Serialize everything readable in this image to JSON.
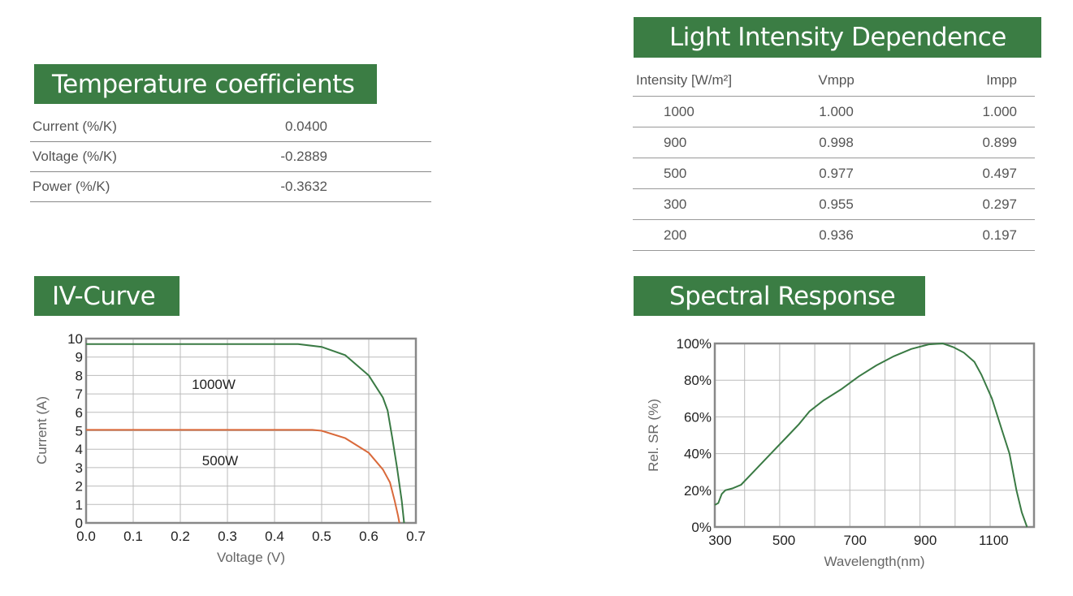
{
  "temperature": {
    "title": "Temperature coefficients",
    "rows": [
      {
        "label": "Current (%/K)",
        "value": "0.0400"
      },
      {
        "label": "Voltage (%/K)",
        "value": "-0.2889"
      },
      {
        "label": "Power (%/K)",
        "value": "-0.3632"
      }
    ]
  },
  "light": {
    "title": "Light Intensity Dependence",
    "headers": [
      "Intensity [W/m²]",
      "Vmpp",
      "Impp"
    ],
    "rows": [
      [
        "1000",
        "1.000",
        "1.000"
      ],
      [
        "900",
        "0.998",
        "0.899"
      ],
      [
        "500",
        "0.977",
        "0.497"
      ],
      [
        "300",
        "0.955",
        "0.297"
      ],
      [
        "200",
        "0.936",
        "0.197"
      ]
    ]
  },
  "iv_title": "IV-Curve",
  "spectral_title": "Spectral Response",
  "colors": {
    "accent": "#3b7d44",
    "green_line": "#3a7a44",
    "orange_line": "#d9693a"
  },
  "chart_data": [
    {
      "type": "line",
      "title": "IV-Curve",
      "xlabel": "Voltage (V)",
      "ylabel": "Current (A)",
      "xlim": [
        0,
        0.7
      ],
      "ylim": [
        0,
        10
      ],
      "xticks": [
        "0.0",
        "0.1",
        "0.2",
        "0.3",
        "0.4",
        "0.5",
        "0.6",
        "0.7"
      ],
      "yticks": [
        "0",
        "1",
        "2",
        "3",
        "4",
        "5",
        "6",
        "7",
        "8",
        "9",
        "10"
      ],
      "grid": true,
      "series": [
        {
          "name": "1000W",
          "color": "#3a7a44",
          "x": [
            0,
            0.1,
            0.2,
            0.3,
            0.45,
            0.5,
            0.55,
            0.6,
            0.63,
            0.64,
            0.65,
            0.66,
            0.67,
            0.675
          ],
          "y": [
            9.7,
            9.7,
            9.7,
            9.7,
            9.7,
            9.55,
            9.1,
            8.0,
            6.8,
            6.1,
            4.6,
            3.0,
            1.2,
            0
          ]
        },
        {
          "name": "500W",
          "color": "#d9693a",
          "x": [
            0,
            0.1,
            0.2,
            0.3,
            0.48,
            0.5,
            0.55,
            0.6,
            0.63,
            0.645,
            0.655,
            0.662,
            0.665
          ],
          "y": [
            5.05,
            5.05,
            5.05,
            5.05,
            5.05,
            5.0,
            4.6,
            3.8,
            2.9,
            2.2,
            1.2,
            0.4,
            0
          ]
        }
      ]
    },
    {
      "type": "line",
      "title": "Spectral Response",
      "xlabel": "Wavelength(nm)",
      "ylabel": "Rel. SR (%)",
      "xlim": [
        290,
        1200
      ],
      "ylim": [
        0,
        100
      ],
      "xticks": [
        "300",
        "500",
        "700",
        "900",
        "1100"
      ],
      "yticks": [
        "0%",
        "20%",
        "40%",
        "60%",
        "80%",
        "100%"
      ],
      "grid": true,
      "series": [
        {
          "name": "Rel. SR",
          "color": "#3a7a44",
          "x": [
            290,
            300,
            310,
            320,
            340,
            365,
            400,
            450,
            500,
            530,
            560,
            600,
            650,
            700,
            750,
            800,
            850,
            900,
            940,
            970,
            1000,
            1030,
            1050,
            1080,
            1110,
            1130,
            1150,
            1165,
            1180
          ],
          "y": [
            12,
            13,
            18,
            20,
            21,
            23,
            30,
            40,
            50,
            56,
            63,
            69,
            75,
            82,
            88,
            93,
            97,
            99.5,
            100,
            98,
            95,
            90,
            83,
            70,
            52,
            40,
            20,
            8,
            0
          ]
        }
      ]
    }
  ]
}
